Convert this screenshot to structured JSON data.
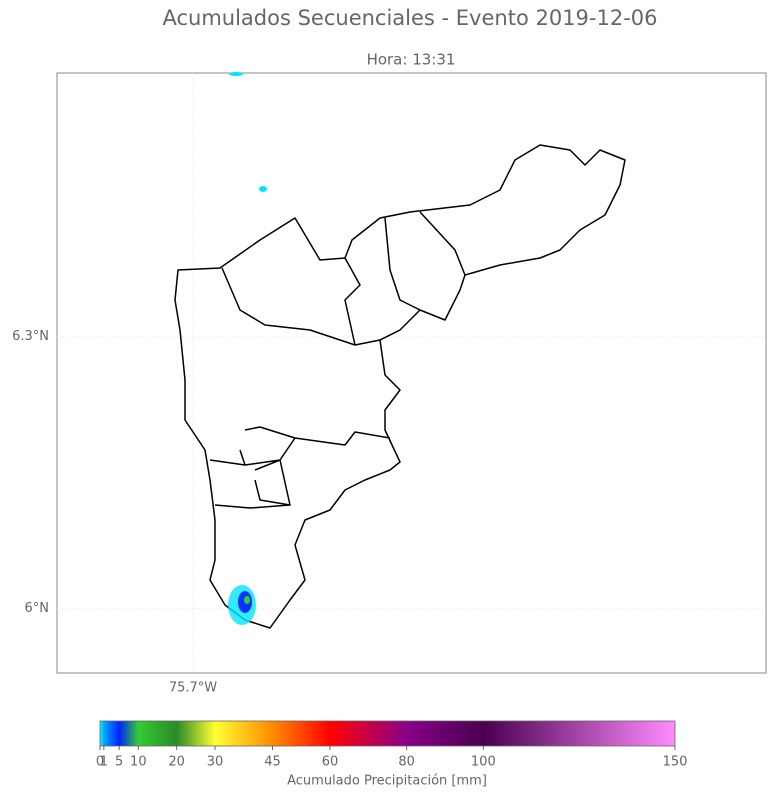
{
  "chart_data": {
    "type": "map",
    "title": "Acumulados Secuenciales - Evento 2019-12-06",
    "subtitle": "Hora: 13:31",
    "xlim": [
      -75.85,
      -75.068
    ],
    "ylim": [
      5.929,
      6.591
    ],
    "xticks": [
      {
        "value": -75.7,
        "label": "75.7°W"
      }
    ],
    "yticks": [
      {
        "value": 6.3,
        "label": "6.3°N"
      },
      {
        "value": 6,
        "label": "6°N"
      }
    ],
    "grid": true,
    "colorbar": {
      "label": "Acumulado Precipitación [mm]",
      "lim": [
        0,
        150
      ],
      "ticks": [
        0,
        1,
        5,
        10,
        20,
        30,
        45,
        60,
        80,
        100,
        150
      ],
      "colors": [
        "#00ffff",
        "#00aaff",
        "#0022ff",
        "#33cc33",
        "#2a8a2a",
        "#ffff33",
        "#ff8c00",
        "#ff0000",
        "#880088",
        "#4a0050",
        "#ff8cff"
      ]
    }
  }
}
